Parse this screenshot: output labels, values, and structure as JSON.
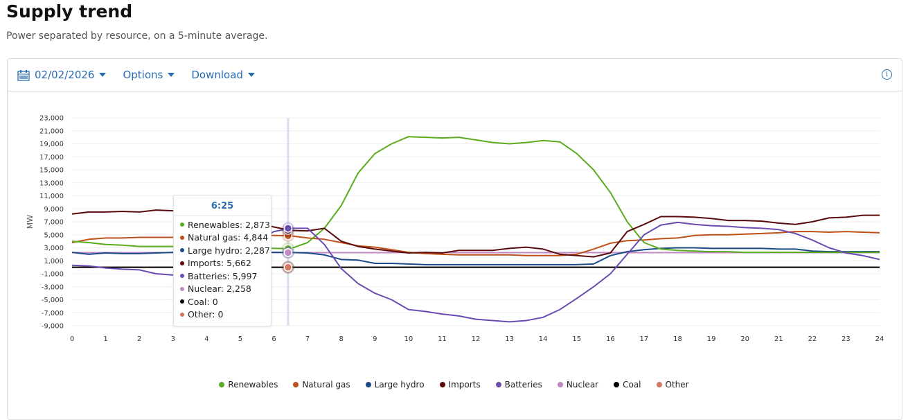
{
  "header": {
    "title": "Supply trend",
    "subtitle": "Power separated by resource, on a 5-minute average."
  },
  "toolbar": {
    "date": "02/02/2026",
    "options": "Options",
    "download": "Download",
    "calendar_icon": "calendar-icon",
    "info_icon": "info-icon"
  },
  "tooltip": {
    "time": "6:25",
    "rows": [
      {
        "label": "Renewables: 2,873",
        "color": "#5aab1e"
      },
      {
        "label": "Natural gas: 4,844",
        "color": "#c0501a"
      },
      {
        "label": "Large hydro: 2,287",
        "color": "#1b4a8a"
      },
      {
        "label": "Imports: 5,662",
        "color": "#5a0a0a"
      },
      {
        "label": "Batteries: 5,997",
        "color": "#6a4cb0"
      },
      {
        "label": "Nuclear: 2,258",
        "color": "#c088c0"
      },
      {
        "label": "Coal: 0",
        "color": "#000000"
      },
      {
        "label": "Other: 0",
        "color": "#d07860"
      }
    ]
  },
  "chart_data": {
    "type": "line",
    "ylabel": "MW",
    "ylim": [
      -9000,
      23000
    ],
    "yticks": [
      "23,000",
      "21,000",
      "19,000",
      "17,000",
      "15,000",
      "13,000",
      "11,000",
      "9,000",
      "7,000",
      "5,000",
      "3,000",
      "1,000",
      "-1,000",
      "-3,000",
      "-5,000",
      "-7,000",
      "-9,000"
    ],
    "xticks": [
      "0",
      "1",
      "2",
      "3",
      "4",
      "5",
      "6",
      "7",
      "8",
      "9",
      "10",
      "11",
      "12",
      "13",
      "14",
      "15",
      "16",
      "17",
      "18",
      "19",
      "20",
      "21",
      "22",
      "23",
      "24"
    ],
    "xlim": [
      0,
      24
    ],
    "x": [
      0,
      0.5,
      1,
      1.5,
      2,
      2.5,
      3,
      3.5,
      4,
      4.5,
      5,
      5.5,
      6,
      6.5,
      7,
      7.5,
      8,
      8.5,
      9,
      9.5,
      10,
      10.5,
      11,
      11.5,
      12,
      12.5,
      13,
      13.5,
      14,
      14.5,
      15,
      15.5,
      16,
      16.5,
      17,
      17.5,
      18,
      18.5,
      19,
      19.5,
      20,
      20.5,
      21,
      21.5,
      22,
      22.5,
      23,
      23.5,
      24
    ],
    "grid": true,
    "legend": "bottom",
    "series": [
      {
        "name": "Renewables",
        "color": "#5aab1e",
        "values": [
          4000,
          3800,
          3500,
          3400,
          3200,
          3200,
          3200,
          3200,
          3100,
          3000,
          3000,
          2950,
          2900,
          2873,
          3800,
          6000,
          9500,
          14500,
          17500,
          19000,
          20100,
          20000,
          19900,
          20000,
          19600,
          19200,
          19000,
          19200,
          19500,
          19300,
          17500,
          15000,
          11500,
          7000,
          3800,
          2800,
          2600,
          2500,
          2400,
          2400,
          2300,
          2300,
          2300,
          2300,
          2300,
          2300,
          2300,
          2300,
          2300
        ]
      },
      {
        "name": "Natural gas",
        "color": "#c0501a",
        "values": [
          3800,
          4300,
          4500,
          4500,
          4600,
          4600,
          4600,
          4600,
          4600,
          4500,
          4800,
          5000,
          4900,
          4844,
          4500,
          4300,
          3800,
          3300,
          3100,
          2700,
          2300,
          2100,
          2000,
          1900,
          1900,
          1900,
          1900,
          1800,
          1800,
          1800,
          2000,
          2800,
          3700,
          4100,
          4200,
          4400,
          4500,
          4900,
          5000,
          5000,
          5100,
          5200,
          5300,
          5500,
          5500,
          5400,
          5500,
          5400,
          5300
        ]
      },
      {
        "name": "Large hydro",
        "color": "#1b4a8a",
        "values": [
          2300,
          2000,
          2200,
          2100,
          2100,
          2200,
          2300,
          2300,
          2300,
          2300,
          2300,
          2300,
          2300,
          2287,
          2200,
          1900,
          1200,
          1100,
          600,
          600,
          500,
          400,
          400,
          400,
          400,
          400,
          400,
          400,
          400,
          400,
          400,
          500,
          1800,
          2400,
          2700,
          2900,
          3000,
          3000,
          2900,
          2900,
          2900,
          2900,
          2800,
          2800,
          2500,
          2400,
          2400,
          2400,
          2400
        ]
      },
      {
        "name": "Imports",
        "color": "#5a0a0a",
        "values": [
          8200,
          8500,
          8500,
          8600,
          8500,
          8800,
          8700,
          8300,
          8200,
          8100,
          7600,
          6800,
          6200,
          5662,
          5600,
          6000,
          4000,
          3200,
          2800,
          2500,
          2200,
          2300,
          2200,
          2600,
          2600,
          2600,
          2900,
          3100,
          2800,
          2000,
          1800,
          1600,
          2200,
          5500,
          6600,
          7800,
          7800,
          7700,
          7500,
          7200,
          7200,
          7100,
          6800,
          6600,
          7000,
          7600,
          7700,
          8000,
          8000
        ]
      },
      {
        "name": "Batteries",
        "color": "#6a4cb0",
        "values": [
          300,
          200,
          -100,
          -300,
          -400,
          -1000,
          -1200,
          -800,
          0,
          1500,
          2800,
          4000,
          5500,
          5997,
          6000,
          3500,
          -200,
          -2500,
          -4000,
          -5000,
          -6500,
          -6800,
          -7200,
          -7500,
          -8000,
          -8200,
          -8400,
          -8200,
          -7700,
          -6500,
          -4800,
          -3000,
          -1000,
          2000,
          5000,
          6500,
          6900,
          6600,
          6400,
          6300,
          6100,
          6000,
          5800,
          5200,
          4200,
          3000,
          2200,
          1800,
          1200
        ]
      },
      {
        "name": "Nuclear",
        "color": "#c088c0",
        "values": [
          2258,
          2258,
          2258,
          2258,
          2258,
          2258,
          2258,
          2258,
          2258,
          2258,
          2258,
          2258,
          2258,
          2258,
          2258,
          2258,
          2258,
          2258,
          2258,
          2258,
          2258,
          2258,
          2258,
          2258,
          2258,
          2258,
          2258,
          2258,
          2258,
          2258,
          2258,
          2258,
          2258,
          2258,
          2258,
          2258,
          2258,
          2258,
          2258,
          2258,
          2258,
          2258,
          2258,
          2258,
          2258,
          2258,
          2258,
          2258,
          2258
        ]
      },
      {
        "name": "Coal",
        "color": "#000000",
        "values": [
          0,
          0,
          0,
          0,
          0,
          0,
          0,
          0,
          0,
          0,
          0,
          0,
          0,
          0,
          0,
          0,
          0,
          0,
          0,
          0,
          0,
          0,
          0,
          0,
          0,
          0,
          0,
          0,
          0,
          0,
          0,
          0,
          0,
          0,
          0,
          0,
          0,
          0,
          0,
          0,
          0,
          0,
          0,
          0,
          0,
          0,
          0,
          0,
          0
        ]
      },
      {
        "name": "Other",
        "color": "#d07860",
        "values": [
          0,
          0,
          0,
          0,
          0,
          0,
          0,
          0,
          0,
          0,
          0,
          0,
          0,
          0,
          0,
          0,
          0,
          0,
          0,
          0,
          0,
          0,
          0,
          0,
          0,
          0,
          0,
          0,
          0,
          0,
          0,
          0,
          0,
          0,
          0,
          0,
          0,
          0,
          0,
          0,
          0,
          0,
          0,
          0,
          0,
          0,
          0,
          0,
          0
        ]
      }
    ],
    "hover_x": 6.42
  }
}
